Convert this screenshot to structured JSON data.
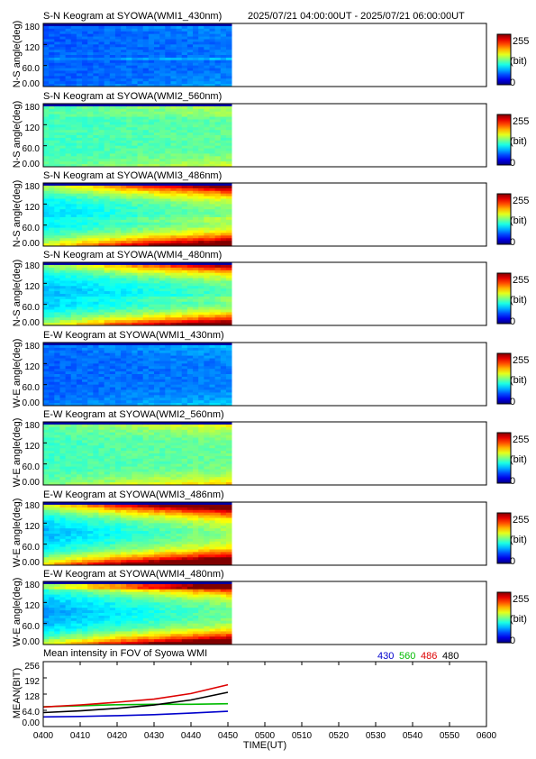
{
  "header": {
    "time_range": "2025/07/21 04:00:00UT - 2025/07/21 06:00:00UT"
  },
  "colorbar": {
    "max_label": "255",
    "unit_label": "(bit)",
    "min_label": "0"
  },
  "chart_data": [
    {
      "type": "heatmap",
      "title": "S-N Keogram at SYOWA(WMI1_430nm)",
      "ylabel": "N-S angle(deg)",
      "yticks": [
        "180",
        "120",
        "60.0",
        "0.00"
      ],
      "ylim": [
        0,
        180
      ],
      "xlim_minutes": [
        0,
        120
      ],
      "data_until_minute": 51,
      "colorscale": {
        "min": 0,
        "max": 255,
        "unit": "(bit)"
      },
      "values": {
        "base": 0.2,
        "mid": 0.22,
        "edge": 0.05,
        "trend": 0.02,
        "streak_deg": 80,
        "streak_amp": 0.1
      }
    },
    {
      "type": "heatmap",
      "title": "S-N Keogram at SYOWA(WMI2_560nm)",
      "ylabel": "N-S angle(deg)",
      "yticks": [
        "180",
        "120",
        "60.0",
        "0.00"
      ],
      "ylim": [
        0,
        180
      ],
      "xlim_minutes": [
        0,
        120
      ],
      "data_until_minute": 51,
      "colorscale": {
        "min": 0,
        "max": 255,
        "unit": "(bit)"
      },
      "values": {
        "base": 0.42,
        "mid": 0.44,
        "edge": 0.1,
        "trend": 0.03,
        "streak_deg": 150,
        "streak_amp": 0.06
      }
    },
    {
      "type": "heatmap",
      "title": "S-N Keogram at SYOWA(WMI3_486nm)",
      "ylabel": "N-S angle(deg)",
      "yticks": [
        "180",
        "120",
        "60.0",
        "0.00"
      ],
      "ylim": [
        0,
        180
      ],
      "xlim_minutes": [
        0,
        120
      ],
      "data_until_minute": 51,
      "colorscale": {
        "min": 0,
        "max": 255,
        "unit": "(bit)"
      },
      "values": {
        "base": 0.38,
        "mid": 0.34,
        "edge": 0.5,
        "trend": 0.16,
        "streak_deg": 75,
        "streak_amp": 0.12
      }
    },
    {
      "type": "heatmap",
      "title": "S-N Keogram at SYOWA(WMI4_480nm)",
      "ylabel": "N-S angle(deg)",
      "yticks": [
        "180",
        "120",
        "60.0",
        "0.00"
      ],
      "ylim": [
        0,
        180
      ],
      "xlim_minutes": [
        0,
        120
      ],
      "data_until_minute": 51,
      "colorscale": {
        "min": 0,
        "max": 255,
        "unit": "(bit)"
      },
      "values": {
        "base": 0.36,
        "mid": 0.3,
        "edge": 0.46,
        "trend": 0.15,
        "streak_deg": 75,
        "streak_amp": 0.12
      }
    },
    {
      "type": "heatmap",
      "title": "E-W Keogram at SYOWA(WMI1_430nm)",
      "ylabel": "W-E angle(deg)",
      "yticks": [
        "180",
        "120",
        "60.0",
        "0.00"
      ],
      "ylim": [
        0,
        180
      ],
      "xlim_minutes": [
        0,
        120
      ],
      "data_until_minute": 51,
      "colorscale": {
        "min": 0,
        "max": 255,
        "unit": "(bit)"
      },
      "values": {
        "base": 0.21,
        "mid": 0.22,
        "edge": 0.07,
        "trend": 0.03,
        "streak_deg": 0,
        "streak_amp": 0
      }
    },
    {
      "type": "heatmap",
      "title": "E-W Keogram at SYOWA(WMI2_560nm)",
      "ylabel": "W-E angle(deg)",
      "yticks": [
        "180",
        "120",
        "60.0",
        "0.00"
      ],
      "ylim": [
        0,
        180
      ],
      "xlim_minutes": [
        0,
        120
      ],
      "data_until_minute": 51,
      "colorscale": {
        "min": 0,
        "max": 255,
        "unit": "(bit)"
      },
      "values": {
        "base": 0.42,
        "mid": 0.44,
        "edge": 0.16,
        "trend": 0.04,
        "streak_deg": 0,
        "streak_amp": 0
      }
    },
    {
      "type": "heatmap",
      "title": "E-W Keogram at SYOWA(WMI3_486nm)",
      "ylabel": "W-E angle(deg)",
      "yticks": [
        "180",
        "120",
        "60.0",
        "0.00"
      ],
      "ylim": [
        0,
        180
      ],
      "xlim_minutes": [
        0,
        120
      ],
      "data_until_minute": 51,
      "colorscale": {
        "min": 0,
        "max": 255,
        "unit": "(bit)"
      },
      "values": {
        "base": 0.4,
        "mid": 0.3,
        "edge": 0.6,
        "trend": 0.22,
        "streak_deg": 0,
        "streak_amp": 0
      }
    },
    {
      "type": "heatmap",
      "title": "E-W Keogram at SYOWA(WMI4_480nm)",
      "ylabel": "W-E angle(deg)",
      "yticks": [
        "180",
        "120",
        "60.0",
        "0.00"
      ],
      "ylim": [
        0,
        180
      ],
      "xlim_minutes": [
        0,
        120
      ],
      "data_until_minute": 51,
      "colorscale": {
        "min": 0,
        "max": 255,
        "unit": "(bit)"
      },
      "values": {
        "base": 0.34,
        "mid": 0.28,
        "edge": 0.55,
        "trend": 0.2,
        "streak_deg": 160,
        "streak_amp": 0.2
      }
    },
    {
      "type": "line",
      "title": "Mean intensity in FOV of Syowa WMI",
      "ylabel": "MEAN(BIT)",
      "xlabel": "TIME(UT)",
      "xticks": [
        "0400",
        "0410",
        "0420",
        "0430",
        "0440",
        "0450",
        "0500",
        "0510",
        "0520",
        "0530",
        "0540",
        "0550",
        "0600"
      ],
      "yticks": [
        "256",
        "192",
        "128",
        "64.0",
        "0.00"
      ],
      "xlim_minutes": [
        0,
        120
      ],
      "ylim": [
        0,
        256
      ],
      "x_minutes": [
        0,
        10,
        20,
        30,
        40,
        50
      ],
      "series": [
        {
          "name": "430",
          "color": "#0000cc",
          "values": [
            38,
            40,
            43,
            47,
            53,
            60
          ]
        },
        {
          "name": "560",
          "color": "#00bb00",
          "values": [
            78,
            82,
            86,
            88,
            88,
            90
          ]
        },
        {
          "name": "486",
          "color": "#dd0000",
          "values": [
            77,
            85,
            96,
            108,
            130,
            165
          ]
        },
        {
          "name": "480",
          "color": "#000000",
          "values": [
            55,
            62,
            72,
            85,
            105,
            135
          ]
        }
      ]
    }
  ]
}
